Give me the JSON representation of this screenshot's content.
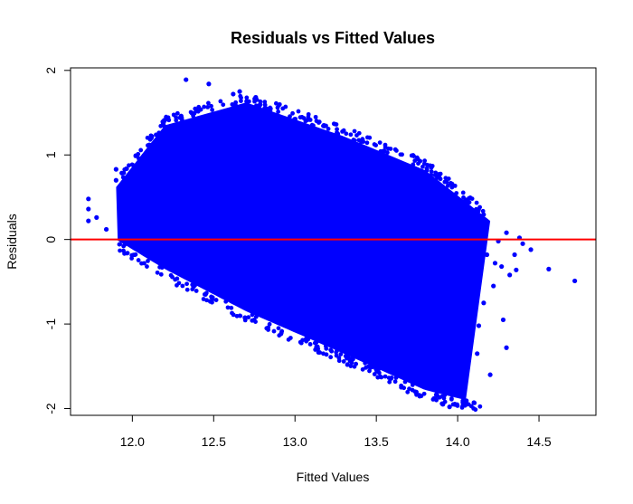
{
  "chart_data": {
    "type": "scatter",
    "title": "Residuals vs Fitted Values",
    "xlabel": "Fitted Values",
    "ylabel": "Residuals",
    "xlim": [
      11.62,
      14.85
    ],
    "ylim": [
      -2.08,
      2.03
    ],
    "x_ticks": [
      "12.0",
      "12.5",
      "13.0",
      "13.5",
      "14.0",
      "14.5"
    ],
    "x_tick_values": [
      12.0,
      12.5,
      13.0,
      13.5,
      14.0,
      14.5
    ],
    "y_ticks": [
      "-2",
      "-1",
      "0",
      "1",
      "2"
    ],
    "y_tick_values": [
      -2,
      -1,
      0,
      1,
      2
    ],
    "point_color": "#0000FF",
    "reference_line": {
      "y": 0,
      "color": "#FF0000"
    },
    "band": {
      "description_free": true,
      "upper_edge": [
        [
          11.9,
          0.62
        ],
        [
          12.2,
          1.35
        ],
        [
          12.7,
          1.62
        ],
        [
          13.3,
          1.22
        ],
        [
          13.8,
          0.82
        ],
        [
          14.2,
          0.22
        ]
      ],
      "lower_edge": [
        [
          11.9,
          0.0
        ],
        [
          12.2,
          -0.35
        ],
        [
          12.7,
          -0.85
        ],
        [
          13.3,
          -1.35
        ],
        [
          13.8,
          -1.78
        ],
        [
          14.05,
          -1.9
        ]
      ]
    },
    "outliers": [
      [
        11.73,
        0.48
      ],
      [
        11.73,
        0.36
      ],
      [
        11.73,
        0.22
      ],
      [
        11.78,
        0.26
      ],
      [
        11.84,
        0.12
      ],
      [
        11.9,
        0.83
      ],
      [
        11.9,
        0.7
      ],
      [
        12.33,
        1.89
      ],
      [
        12.47,
        1.84
      ],
      [
        12.3,
        1.46
      ],
      [
        12.62,
        1.72
      ],
      [
        12.66,
        1.75
      ],
      [
        12.2,
        1.02
      ],
      [
        14.1,
        -1.93
      ],
      [
        13.95,
        -1.98
      ],
      [
        14.0,
        -1.72
      ],
      [
        14.2,
        -1.6
      ],
      [
        14.13,
        -1.02
      ],
      [
        14.28,
        -0.95
      ],
      [
        14.3,
        -1.28
      ],
      [
        14.16,
        -0.75
      ],
      [
        14.22,
        -0.55
      ],
      [
        14.27,
        -0.32
      ],
      [
        14.32,
        -0.42
      ],
      [
        14.36,
        -0.36
      ],
      [
        14.23,
        -0.28
      ],
      [
        14.18,
        -0.18
      ],
      [
        14.4,
        -0.05
      ],
      [
        14.45,
        -0.12
      ],
      [
        14.38,
        0.02
      ],
      [
        14.3,
        0.08
      ],
      [
        14.56,
        -0.35
      ],
      [
        14.72,
        -0.49
      ],
      [
        14.35,
        -0.18
      ],
      [
        14.25,
        -0.02
      ],
      [
        14.12,
        -1.35
      ],
      [
        14.08,
        -1.15
      ]
    ]
  }
}
